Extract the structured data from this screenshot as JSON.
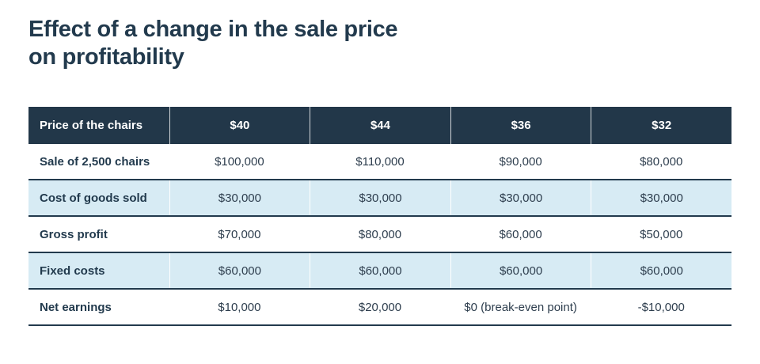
{
  "title_lines": [
    "Effect of a change in the sale price",
    "on profitability"
  ],
  "table": {
    "header": [
      "Price of the chairs",
      "$40",
      "$44",
      "$36",
      "$32"
    ],
    "rows": [
      {
        "label": "Sale of 2,500 chairs",
        "values": [
          "$100,000",
          "$110,000",
          "$90,000",
          "$80,000"
        ]
      },
      {
        "label": "Cost of goods sold",
        "values": [
          "$30,000",
          "$30,000",
          "$30,000",
          "$30,000"
        ]
      },
      {
        "label": "Gross profit",
        "values": [
          "$70,000",
          "$80,000",
          "$60,000",
          "$50,000"
        ]
      },
      {
        "label": "Fixed costs",
        "values": [
          "$60,000",
          "$60,000",
          "$60,000",
          "$60,000"
        ]
      },
      {
        "label": "Net earnings",
        "values": [
          "$10,000",
          "$20,000",
          "$0 (break-even point)",
          "-$10,000"
        ]
      }
    ]
  },
  "colors": {
    "navy": "#223A4D",
    "header_bg": "#223749",
    "band_bg": "#D7EBF4",
    "value_text": "#2E3E4E"
  }
}
